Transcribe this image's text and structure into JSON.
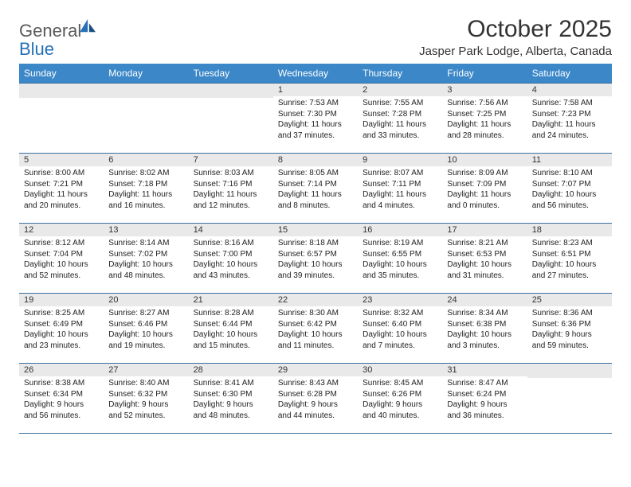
{
  "brand": {
    "part1": "General",
    "part2": "Blue"
  },
  "title": "October 2025",
  "location": "Jasper Park Lodge, Alberta, Canada",
  "header_bg": "#3b87c8",
  "day_headers": [
    "Sunday",
    "Monday",
    "Tuesday",
    "Wednesday",
    "Thursday",
    "Friday",
    "Saturday"
  ],
  "weeks": [
    [
      null,
      null,
      null,
      {
        "n": "1",
        "sr": "7:53 AM",
        "ss": "7:30 PM",
        "dh": "11",
        "dm": "37"
      },
      {
        "n": "2",
        "sr": "7:55 AM",
        "ss": "7:28 PM",
        "dh": "11",
        "dm": "33"
      },
      {
        "n": "3",
        "sr": "7:56 AM",
        "ss": "7:25 PM",
        "dh": "11",
        "dm": "28"
      },
      {
        "n": "4",
        "sr": "7:58 AM",
        "ss": "7:23 PM",
        "dh": "11",
        "dm": "24"
      }
    ],
    [
      {
        "n": "5",
        "sr": "8:00 AM",
        "ss": "7:21 PM",
        "dh": "11",
        "dm": "20"
      },
      {
        "n": "6",
        "sr": "8:02 AM",
        "ss": "7:18 PM",
        "dh": "11",
        "dm": "16"
      },
      {
        "n": "7",
        "sr": "8:03 AM",
        "ss": "7:16 PM",
        "dh": "11",
        "dm": "12"
      },
      {
        "n": "8",
        "sr": "8:05 AM",
        "ss": "7:14 PM",
        "dh": "11",
        "dm": "8"
      },
      {
        "n": "9",
        "sr": "8:07 AM",
        "ss": "7:11 PM",
        "dh": "11",
        "dm": "4"
      },
      {
        "n": "10",
        "sr": "8:09 AM",
        "ss": "7:09 PM",
        "dh": "11",
        "dm": "0"
      },
      {
        "n": "11",
        "sr": "8:10 AM",
        "ss": "7:07 PM",
        "dh": "10",
        "dm": "56"
      }
    ],
    [
      {
        "n": "12",
        "sr": "8:12 AM",
        "ss": "7:04 PM",
        "dh": "10",
        "dm": "52"
      },
      {
        "n": "13",
        "sr": "8:14 AM",
        "ss": "7:02 PM",
        "dh": "10",
        "dm": "48"
      },
      {
        "n": "14",
        "sr": "8:16 AM",
        "ss": "7:00 PM",
        "dh": "10",
        "dm": "43"
      },
      {
        "n": "15",
        "sr": "8:18 AM",
        "ss": "6:57 PM",
        "dh": "10",
        "dm": "39"
      },
      {
        "n": "16",
        "sr": "8:19 AM",
        "ss": "6:55 PM",
        "dh": "10",
        "dm": "35"
      },
      {
        "n": "17",
        "sr": "8:21 AM",
        "ss": "6:53 PM",
        "dh": "10",
        "dm": "31"
      },
      {
        "n": "18",
        "sr": "8:23 AM",
        "ss": "6:51 PM",
        "dh": "10",
        "dm": "27"
      }
    ],
    [
      {
        "n": "19",
        "sr": "8:25 AM",
        "ss": "6:49 PM",
        "dh": "10",
        "dm": "23"
      },
      {
        "n": "20",
        "sr": "8:27 AM",
        "ss": "6:46 PM",
        "dh": "10",
        "dm": "19"
      },
      {
        "n": "21",
        "sr": "8:28 AM",
        "ss": "6:44 PM",
        "dh": "10",
        "dm": "15"
      },
      {
        "n": "22",
        "sr": "8:30 AM",
        "ss": "6:42 PM",
        "dh": "10",
        "dm": "11"
      },
      {
        "n": "23",
        "sr": "8:32 AM",
        "ss": "6:40 PM",
        "dh": "10",
        "dm": "7"
      },
      {
        "n": "24",
        "sr": "8:34 AM",
        "ss": "6:38 PM",
        "dh": "10",
        "dm": "3"
      },
      {
        "n": "25",
        "sr": "8:36 AM",
        "ss": "6:36 PM",
        "dh": "9",
        "dm": "59"
      }
    ],
    [
      {
        "n": "26",
        "sr": "8:38 AM",
        "ss": "6:34 PM",
        "dh": "9",
        "dm": "56"
      },
      {
        "n": "27",
        "sr": "8:40 AM",
        "ss": "6:32 PM",
        "dh": "9",
        "dm": "52"
      },
      {
        "n": "28",
        "sr": "8:41 AM",
        "ss": "6:30 PM",
        "dh": "9",
        "dm": "48"
      },
      {
        "n": "29",
        "sr": "8:43 AM",
        "ss": "6:28 PM",
        "dh": "9",
        "dm": "44"
      },
      {
        "n": "30",
        "sr": "8:45 AM",
        "ss": "6:26 PM",
        "dh": "9",
        "dm": "40"
      },
      {
        "n": "31",
        "sr": "8:47 AM",
        "ss": "6:24 PM",
        "dh": "9",
        "dm": "36"
      },
      null
    ]
  ]
}
